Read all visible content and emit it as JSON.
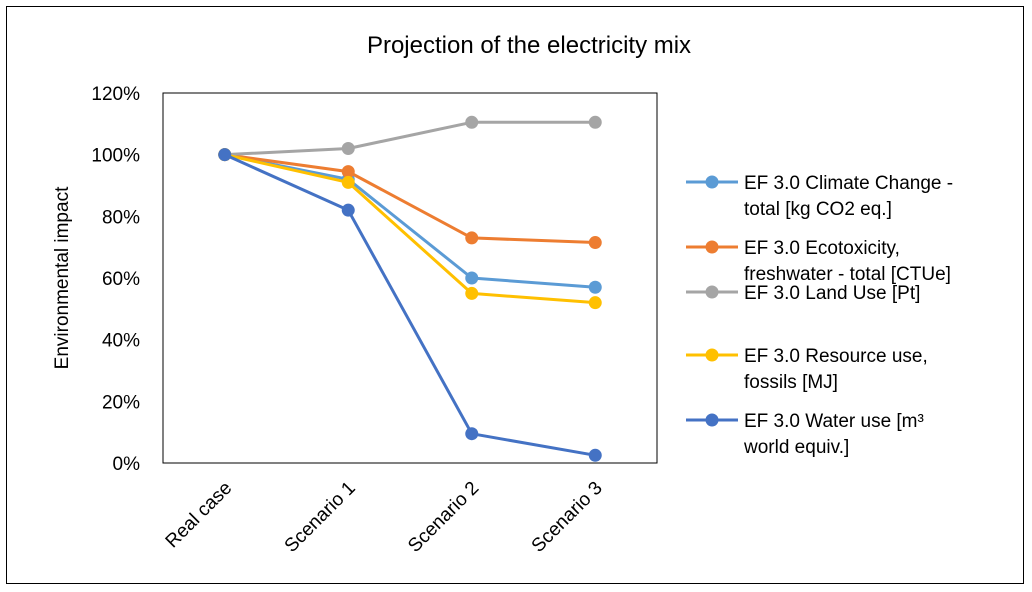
{
  "chart_data": {
    "type": "line",
    "title": "Projection of the electricity mix",
    "xlabel": "",
    "ylabel": "Environmental impact",
    "categories": [
      "Real case",
      "Scenario 1",
      "Scenario 2",
      "Scenario 3"
    ],
    "ylim": [
      0,
      120
    ],
    "yticks": [
      0,
      20,
      40,
      60,
      80,
      100,
      120
    ],
    "ytick_labels": [
      "0%",
      "20%",
      "40%",
      "60%",
      "80%",
      "100%",
      "120%"
    ],
    "grid": false,
    "legend_position": "right",
    "series": [
      {
        "name": "EF 3.0 Climate Change - total [kg CO2 eq.]",
        "legend_lines": [
          "EF 3.0 Climate Change -",
          "total [kg CO2 eq.]"
        ],
        "color": "#5B9BD5",
        "values": [
          100,
          92,
          60,
          57
        ]
      },
      {
        "name": "EF 3.0 Ecotoxicity, freshwater - total [CTUe]",
        "legend_lines": [
          "EF 3.0 Ecotoxicity,",
          "freshwater - total [CTUe]"
        ],
        "color": "#ED7D31",
        "values": [
          100,
          94.5,
          73,
          71.5
        ]
      },
      {
        "name": "EF 3.0 Land Use [Pt]",
        "legend_lines": [
          "EF 3.0 Land Use [Pt]"
        ],
        "color": "#A5A5A5",
        "values": [
          100,
          102,
          110.5,
          110.5
        ]
      },
      {
        "name": "EF 3.0 Resource use, fossils [MJ]",
        "legend_lines": [
          "EF 3.0 Resource use,",
          "fossils [MJ]"
        ],
        "color": "#FFC000",
        "values": [
          100,
          91,
          55,
          52
        ]
      },
      {
        "name": "EF 3.0 Water use [m³ world equiv.]",
        "legend_lines": [
          "EF 3.0 Water use [m³",
          "world equiv.]"
        ],
        "color": "#4472C4",
        "values": [
          100,
          82,
          9.5,
          2.5
        ]
      }
    ]
  }
}
